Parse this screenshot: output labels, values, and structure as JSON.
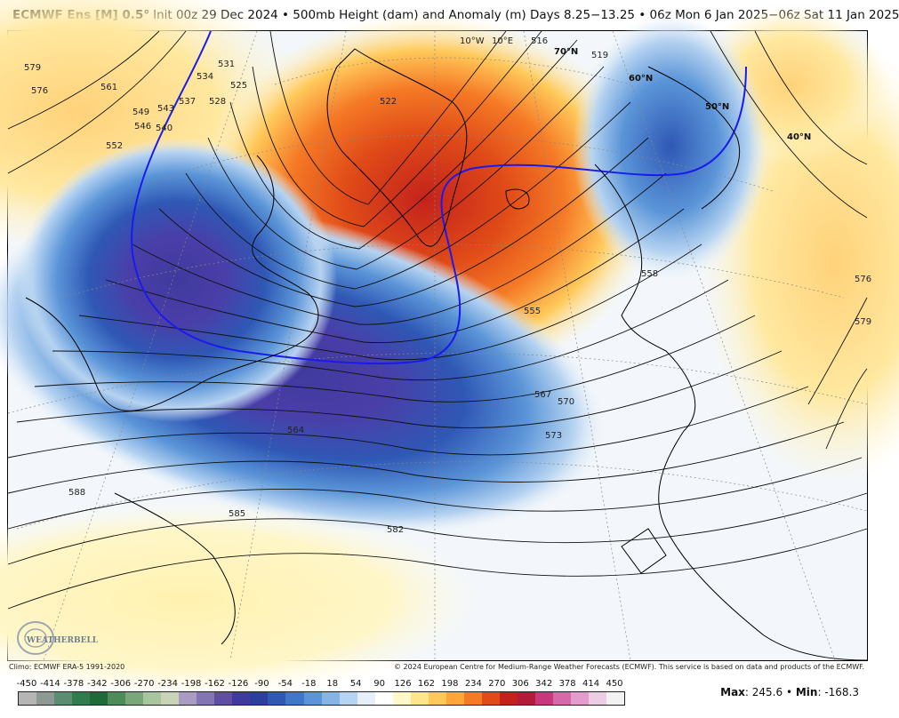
{
  "title": {
    "brand": "ECMWF Ens [M] 0.5°",
    "text": "Init 00z 29 Dec 2024 • 500mb Height (dam) and Anomaly (m) Days 8.25−13.25 • 06z Mon 6 Jan 2025−06z Sat 11 Jan 2025"
  },
  "credits": {
    "climo": "Climo: ECMWF ERA-5 1991-2020",
    "copyright": "© 2024 European Centre for Medium-Range Weather Forecasts (ECMWF). This service is based on data and products of the ECMWF."
  },
  "colorbar": {
    "ticks": [
      "-450",
      "-414",
      "-378",
      "-342",
      "-306",
      "-270",
      "-234",
      "-198",
      "-162",
      "-126",
      "-90",
      "-54",
      "-18",
      "18",
      "54",
      "90",
      "126",
      "162",
      "198",
      "234",
      "270",
      "306",
      "342",
      "378",
      "414",
      "450"
    ],
    "colors": [
      "#b5b5b5",
      "#8c9a93",
      "#5b8d73",
      "#2f7d4e",
      "#1e6b3a",
      "#4d8b59",
      "#7aa77a",
      "#a9c59d",
      "#c9d3b8",
      "#a99bc2",
      "#8374b3",
      "#5f4fa3",
      "#3f3a9d",
      "#2c3f9f",
      "#2f58b5",
      "#3f77c9",
      "#5b95d8",
      "#86b4e5",
      "#b6d3f1",
      "#e6eff8",
      "#ffffff",
      "#fff8c8",
      "#ffe58a",
      "#ffc95a",
      "#ffa53a",
      "#f57a26",
      "#e04b18",
      "#c3221c",
      "#b31b3a",
      "#c7397a",
      "#d66aa8",
      "#e39ccb",
      "#eccde4",
      "#f2f2f2"
    ]
  },
  "stats": {
    "max_label": "Max",
    "max_value": "245.6",
    "min_label": "Min",
    "min_value": "-168.3"
  },
  "map": {
    "contour_labels": [
      "579",
      "576",
      "561",
      "552",
      "549",
      "546",
      "543",
      "540",
      "537",
      "534",
      "531",
      "528",
      "525",
      "522",
      "519",
      "516",
      "10°W",
      "10°E",
      "70°N",
      "60°N",
      "50°N",
      "40°N",
      "555",
      "558",
      "564",
      "567",
      "570",
      "573",
      "576",
      "579",
      "582",
      "585",
      "588"
    ],
    "lat_labels": [
      "70°N",
      "60°N",
      "50°N",
      "40°N"
    ],
    "logo_text": "WEATHERBELL"
  }
}
